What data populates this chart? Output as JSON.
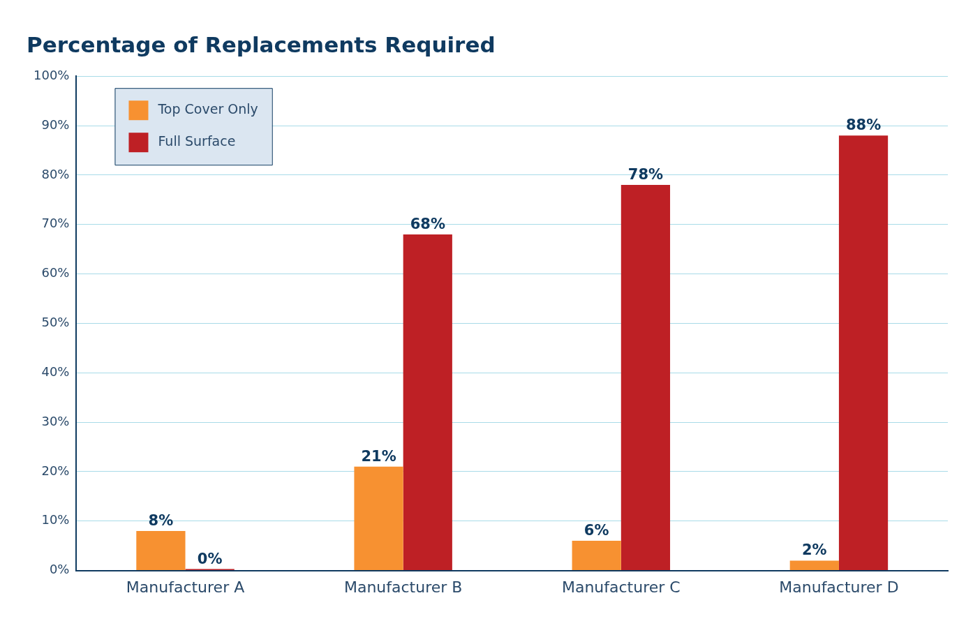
{
  "chart_data": {
    "type": "bar",
    "title": "Percentage of Replacements Required",
    "categories": [
      "Manufacturer A",
      "Manufacturer B",
      "Manufacturer C",
      "Manufacturer D"
    ],
    "series": [
      {
        "name": "Top Cover Only",
        "color": "#f79131",
        "values": [
          8,
          21,
          6,
          2
        ],
        "value_labels": [
          "8%",
          "21%",
          "6%",
          "2%"
        ]
      },
      {
        "name": "Full Surface",
        "color": "#be2025",
        "values": [
          0,
          68,
          78,
          88
        ],
        "value_labels": [
          "0%",
          "68%",
          "78%",
          "88%"
        ]
      }
    ],
    "ylim": [
      0,
      100
    ],
    "yticks": [
      {
        "value": 0,
        "label": "0%"
      },
      {
        "value": 10,
        "label": "10%"
      },
      {
        "value": 20,
        "label": "20%"
      },
      {
        "value": 30,
        "label": "30%"
      },
      {
        "value": 40,
        "label": "40%"
      },
      {
        "value": 50,
        "label": "50%"
      },
      {
        "value": 60,
        "label": "60%"
      },
      {
        "value": 70,
        "label": "70%"
      },
      {
        "value": 80,
        "label": "80%"
      },
      {
        "value": 90,
        "label": "90%"
      },
      {
        "value": 100,
        "label": "100%"
      }
    ],
    "grid": "y",
    "legend": "top left"
  }
}
